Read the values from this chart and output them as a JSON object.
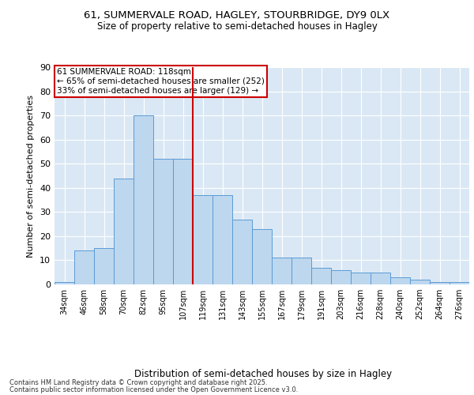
{
  "title1": "61, SUMMERVALE ROAD, HAGLEY, STOURBRIDGE, DY9 0LX",
  "title2": "Size of property relative to semi-detached houses in Hagley",
  "xlabel": "Distribution of semi-detached houses by size in Hagley",
  "ylabel": "Number of semi-detached properties",
  "categories": [
    "34sqm",
    "46sqm",
    "58sqm",
    "70sqm",
    "82sqm",
    "95sqm",
    "107sqm",
    "119sqm",
    "131sqm",
    "143sqm",
    "155sqm",
    "167sqm",
    "179sqm",
    "191sqm",
    "203sqm",
    "216sqm",
    "228sqm",
    "240sqm",
    "252sqm",
    "264sqm",
    "276sqm"
  ],
  "values": [
    1,
    14,
    15,
    44,
    70,
    52,
    52,
    37,
    37,
    27,
    23,
    11,
    11,
    7,
    6,
    5,
    5,
    3,
    2,
    1,
    1
  ],
  "bar_color": "#BDD7EE",
  "bar_edge_color": "#5B9BD5",
  "vline_x_pos": 6.5,
  "vline_color": "#CC0000",
  "annotation_line1": "61 SUMMERVALE ROAD: 118sqm",
  "annotation_line2": "← 65% of semi-detached houses are smaller (252)",
  "annotation_line3": "33% of semi-detached houses are larger (129) →",
  "annotation_box_edge": "#CC0000",
  "ylim": [
    0,
    90
  ],
  "yticks": [
    0,
    10,
    20,
    30,
    40,
    50,
    60,
    70,
    80,
    90
  ],
  "background_color": "#FFFFFF",
  "plot_bg_color": "#DAE8F5",
  "grid_color": "#FFFFFF",
  "footnote1": "Contains HM Land Registry data © Crown copyright and database right 2025.",
  "footnote2": "Contains public sector information licensed under the Open Government Licence v3.0."
}
